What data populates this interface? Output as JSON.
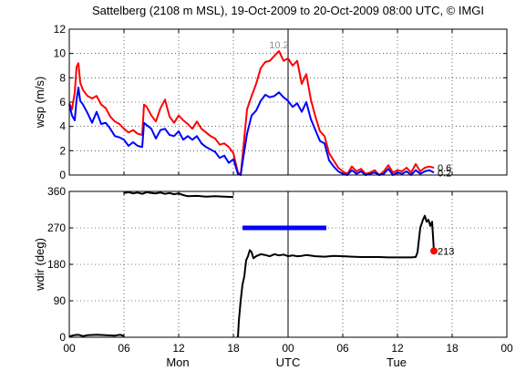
{
  "title": "Sattelberg (2108 m MSL), 19-Oct-2009 to 20-Oct-2009 08:00 UTC, © IMGI",
  "x_ticks": [
    "00",
    "06",
    "12",
    "18",
    "00",
    "06",
    "12",
    "18",
    "00"
  ],
  "day_labels": [
    "Mon",
    "UTC",
    "Tue"
  ],
  "chart_data": [
    {
      "type": "line",
      "ylabel": "wsp (m/s)",
      "xlabel": "",
      "xlim": [
        0,
        48
      ],
      "ylim": [
        0,
        12
      ],
      "y_ticks": [
        0,
        2,
        4,
        6,
        8,
        10,
        12
      ],
      "grid": true,
      "x_unit": "hours since 19-Oct-2009 00:00 UTC",
      "series": [
        {
          "color": "#ff0000",
          "x": [
            0,
            0.3,
            0.6,
            0.8,
            1.0,
            1.2,
            1.5,
            2.0,
            2.5,
            3.0,
            3.5,
            4.0,
            4.5,
            5.0,
            5.5,
            6.0,
            6.5,
            7.0,
            7.5,
            8.0,
            8.2,
            8.5,
            9.0,
            9.5,
            10.0,
            10.5,
            11.0,
            11.5,
            12.0,
            12.5,
            13.0,
            13.5,
            14.0,
            14.5,
            15.0,
            15.5,
            16.0,
            16.5,
            17.0,
            17.5,
            18.0,
            18.5,
            18.8,
            19.0,
            19.5,
            20.0,
            20.5,
            21.0,
            21.5,
            22.0,
            22.5,
            23.0,
            23.5,
            24.0,
            24.5,
            25.0,
            25.5,
            26.0,
            26.5,
            27.0,
            27.5,
            28.0,
            28.5,
            29.0,
            29.5,
            30.0,
            30.5,
            31.0,
            31.5,
            32.0,
            32.5,
            33.0,
            33.5,
            34.0,
            34.5,
            35.0,
            35.5,
            36.0,
            36.5,
            37.0,
            37.5,
            38.0,
            38.5,
            39.0,
            39.5,
            40.0
          ],
          "y": [
            5.9,
            5.4,
            6.8,
            8.9,
            9.2,
            7.6,
            7.0,
            6.5,
            6.3,
            6.5,
            5.8,
            5.5,
            4.8,
            4.4,
            4.2,
            3.8,
            3.5,
            3.7,
            3.4,
            3.3,
            5.8,
            5.6,
            4.9,
            4.4,
            5.5,
            6.2,
            4.8,
            4.3,
            4.9,
            4.5,
            4.2,
            3.8,
            4.4,
            3.8,
            3.5,
            3.2,
            3.0,
            2.5,
            2.6,
            2.3,
            1.8,
            0.2,
            0.0,
            1.5,
            5.4,
            6.5,
            7.5,
            8.8,
            9.3,
            9.4,
            9.8,
            10.2,
            9.4,
            9.6,
            9.0,
            9.4,
            7.5,
            8.3,
            6.2,
            4.8,
            3.6,
            3.2,
            1.8,
            1.2,
            0.6,
            0.3,
            0.1,
            0.7,
            0.3,
            0.5,
            0.1,
            0.2,
            0.4,
            0.0,
            0.3,
            0.8,
            0.2,
            0.4,
            0.3,
            0.6,
            0.2,
            0.9,
            0.3,
            0.6,
            0.7,
            0.6
          ]
        },
        {
          "color": "#0000ff",
          "x": [
            0,
            0.3,
            0.6,
            0.8,
            1.0,
            1.2,
            1.5,
            2.0,
            2.5,
            3.0,
            3.5,
            4.0,
            4.5,
            5.0,
            5.5,
            6.0,
            6.5,
            7.0,
            7.5,
            8.0,
            8.2,
            8.5,
            9.0,
            9.5,
            10.0,
            10.5,
            11.0,
            11.5,
            12.0,
            12.5,
            13.0,
            13.5,
            14.0,
            14.5,
            15.0,
            15.5,
            16.0,
            16.5,
            17.0,
            17.5,
            18.0,
            18.5,
            18.8,
            19.0,
            19.5,
            20.0,
            20.5,
            21.0,
            21.5,
            22.0,
            22.5,
            23.0,
            23.5,
            24.0,
            24.5,
            25.0,
            25.5,
            26.0,
            26.5,
            27.0,
            27.5,
            28.0,
            28.5,
            29.0,
            29.5,
            30.0,
            30.5,
            31.0,
            31.5,
            32.0,
            32.5,
            33.0,
            33.5,
            34.0,
            34.5,
            35.0,
            35.5,
            36.0,
            36.5,
            37.0,
            37.5,
            38.0,
            38.5,
            39.0,
            39.5,
            40.0
          ],
          "y": [
            5.8,
            4.9,
            4.5,
            6.2,
            7.2,
            6.1,
            5.8,
            5.1,
            4.3,
            5.2,
            4.2,
            4.3,
            3.8,
            3.2,
            3.1,
            2.9,
            2.4,
            2.7,
            2.4,
            2.3,
            4.3,
            4.1,
            3.8,
            3.0,
            3.7,
            3.8,
            3.3,
            3.2,
            3.6,
            2.9,
            3.2,
            2.9,
            3.2,
            2.6,
            2.3,
            2.1,
            1.9,
            1.4,
            1.6,
            1.0,
            1.3,
            0.1,
            0.0,
            1.0,
            3.4,
            4.9,
            5.3,
            6.1,
            6.6,
            6.4,
            6.5,
            6.8,
            6.4,
            6.1,
            5.6,
            5.9,
            5.2,
            6.0,
            4.6,
            3.7,
            2.8,
            2.6,
            1.2,
            0.7,
            0.3,
            0.1,
            0.0,
            0.4,
            0.1,
            0.3,
            0.0,
            0.1,
            0.2,
            0.0,
            0.1,
            0.5,
            0.0,
            0.2,
            0.1,
            0.3,
            0.0,
            0.4,
            0.1,
            0.3,
            0.4,
            0.2
          ]
        }
      ],
      "annotations": [
        {
          "text": "10.2",
          "x": 23.0,
          "y": 10.2,
          "color": "#909090"
        },
        {
          "text": "0.6",
          "x": 40.4,
          "y": 0.6,
          "color": "#000000"
        },
        {
          "text": "0.2",
          "x": 40.4,
          "y": 0.2,
          "color": "#000000"
        }
      ]
    },
    {
      "type": "line",
      "ylabel": "wdir (deg)",
      "xlabel": "",
      "xlim": [
        0,
        48
      ],
      "ylim": [
        0,
        360
      ],
      "y_ticks": [
        0,
        90,
        180,
        270,
        360
      ],
      "grid": true,
      "x_unit": "hours since 19-Oct-2009 00:00 UTC",
      "series": [
        {
          "color": "#000000",
          "x": [
            0,
            0.5,
            1.0,
            1.5,
            2.0,
            3.0,
            4.0,
            5.0,
            5.6,
            6.0
          ],
          "y": [
            2,
            5,
            6,
            3,
            5,
            6,
            5,
            4,
            6,
            3
          ]
        },
        {
          "color": "#000000",
          "x": [
            6.0,
            6.5,
            7.0,
            7.5,
            8.0,
            8.5,
            9.0,
            9.5,
            10.0,
            10.5,
            11.0,
            11.5,
            12.0,
            12.5,
            13.0,
            14.0,
            15.0,
            16.0,
            17.0,
            18.0
          ],
          "y": [
            356,
            358,
            355,
            357,
            354,
            358,
            356,
            355,
            357,
            354,
            356,
            353,
            355,
            351,
            348,
            349,
            347,
            348,
            347,
            346
          ]
        },
        {
          "color": "#000000",
          "x": [
            18.5,
            18.6,
            18.8,
            19.0,
            19.2,
            19.4,
            19.6,
            19.8,
            20.0,
            20.2,
            20.5,
            21.0,
            21.5,
            22.0,
            22.5,
            23.0,
            23.5,
            24.0,
            24.5,
            25.0,
            25.5,
            26.0,
            27.0,
            28.0,
            29.0,
            30.0,
            31.0,
            32.0,
            33.0,
            34.0,
            35.0,
            36.0,
            37.0,
            37.5,
            38.0,
            38.2,
            38.5,
            38.8,
            39.0,
            39.2,
            39.4,
            39.6,
            39.8,
            40.0
          ],
          "y": [
            0,
            40,
            90,
            130,
            150,
            190,
            200,
            215,
            210,
            195,
            200,
            205,
            203,
            200,
            205,
            202,
            204,
            200,
            202,
            200,
            201,
            203,
            200,
            199,
            201,
            200,
            199,
            198,
            198,
            198,
            197,
            197,
            197,
            197,
            198,
            210,
            270,
            290,
            300,
            285,
            290,
            275,
            285,
            213
          ]
        },
        {
          "color": "#0000ff",
          "width": 5,
          "x": [
            19.0,
            28.2
          ],
          "y": [
            270,
            270
          ]
        }
      ],
      "markers": [
        {
          "x": 40.0,
          "y": 213,
          "color": "#ff0000"
        }
      ],
      "annotations": [
        {
          "text": "213",
          "x": 40.4,
          "y": 213,
          "color": "#000000"
        }
      ]
    }
  ]
}
